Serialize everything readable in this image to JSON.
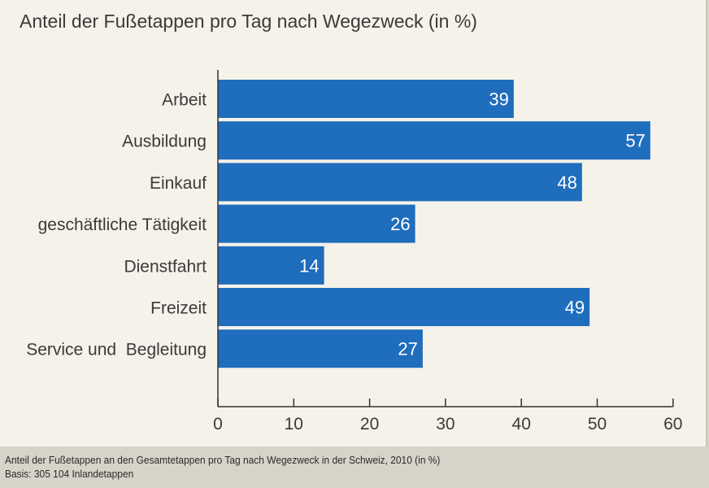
{
  "title": "Anteil der Fußetappen pro Tag nach Wegezweck (in %)",
  "footer": {
    "line1": "Anteil der Fußetappen an den Gesamtetappen pro Tag nach Wegezweck in der Schweiz, 2010 (in %)",
    "line2": "Basis: 305 104 Inlandetappen"
  },
  "colors": {
    "bar": "#1f6dbd",
    "bar_label": "#ffffff",
    "axis": "#333333",
    "text": "#3a3a3a",
    "background": "#f4f2e9"
  },
  "chart_data": {
    "type": "bar",
    "orientation": "horizontal",
    "title": "Anteil der Fußetappen pro Tag nach Wegezweck (in %)",
    "xlabel": "",
    "ylabel": "",
    "categories": [
      "Arbeit",
      "Ausbildung",
      "Einkauf",
      "geschäftliche Tätigkeit",
      "Dienstfahrt",
      "Freizeit",
      "Service und  Begleitung"
    ],
    "values": [
      39,
      57,
      48,
      26,
      14,
      49,
      27
    ],
    "xlim": [
      0,
      60
    ],
    "xticks": [
      0,
      10,
      20,
      30,
      40,
      50,
      60
    ],
    "grid": false,
    "legend": "none"
  }
}
